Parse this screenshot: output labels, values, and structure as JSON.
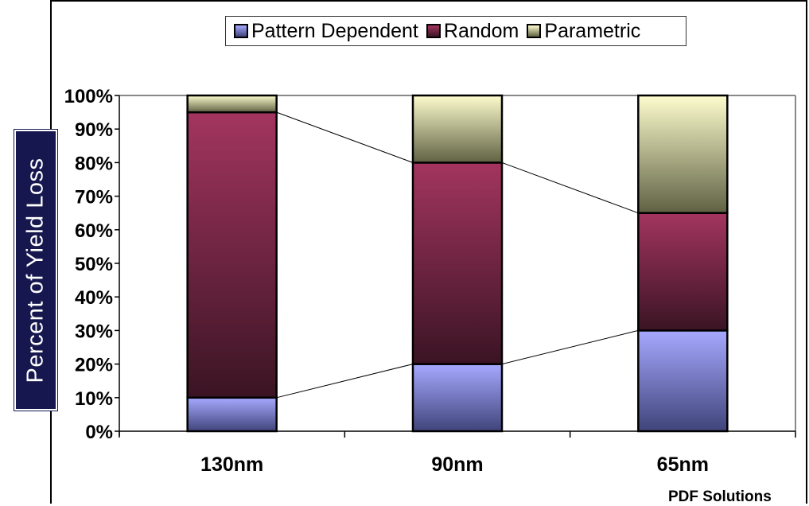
{
  "chart_data": {
    "type": "bar",
    "stacked": true,
    "categories": [
      "130nm",
      "90nm",
      "65nm"
    ],
    "series": [
      {
        "name": "Pattern Dependent",
        "values": [
          10,
          20,
          30
        ]
      },
      {
        "name": "Random",
        "values": [
          85,
          60,
          35
        ]
      },
      {
        "name": "Parametric",
        "values": [
          5,
          20,
          35
        ]
      }
    ],
    "ylabel": "Percent of Yield Loss",
    "ylim": [
      0,
      100
    ],
    "yticks": [
      "0%",
      "10%",
      "20%",
      "30%",
      "40%",
      "50%",
      "60%",
      "70%",
      "80%",
      "90%",
      "100%"
    ],
    "legend_position": "top",
    "series_lines": true,
    "colors": {
      "Pattern Dependent": [
        "#a6a9ff",
        "#40447a"
      ],
      "Random": [
        "#a3355f",
        "#3a1423"
      ],
      "Parametric": [
        "#fdfcce",
        "#5f6142"
      ]
    }
  },
  "footer": {
    "source": "PDF Solutions"
  }
}
